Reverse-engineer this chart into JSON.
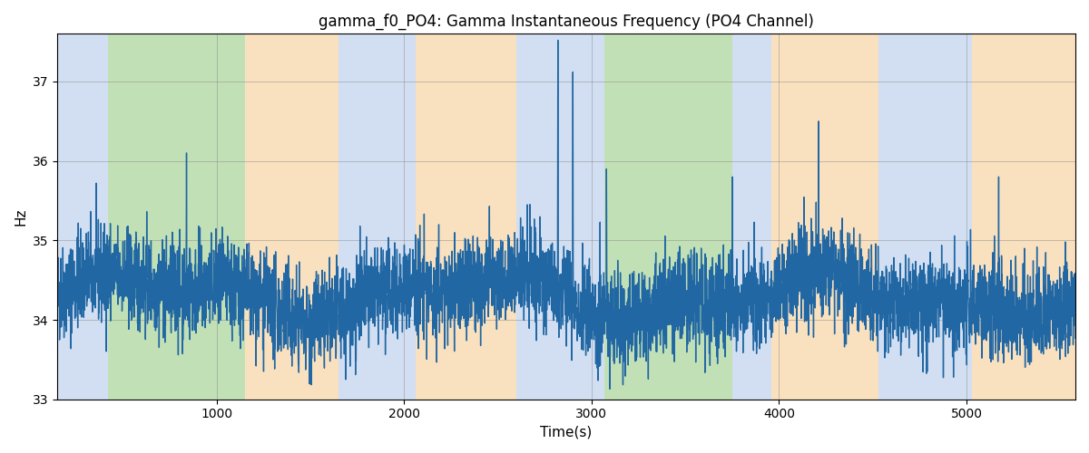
{
  "title": "gamma_f0_PO4: Gamma Instantaneous Frequency (PO4 Channel)",
  "xlabel": "Time(s)",
  "ylabel": "Hz",
  "ylim": [
    33,
    37.6
  ],
  "xlim": [
    150,
    5580
  ],
  "yticks": [
    33,
    34,
    35,
    36,
    37
  ],
  "xticks": [
    1000,
    2000,
    3000,
    4000,
    5000
  ],
  "line_color": "#2167a3",
  "line_width": 1.0,
  "bg_regions": [
    {
      "start": 150,
      "end": 420,
      "color": "#aec6e8",
      "alpha": 0.55
    },
    {
      "start": 420,
      "end": 1150,
      "color": "#90c87a",
      "alpha": 0.55
    },
    {
      "start": 1150,
      "end": 1650,
      "color": "#f5c88a",
      "alpha": 0.55
    },
    {
      "start": 1650,
      "end": 2060,
      "color": "#aec6e8",
      "alpha": 0.55
    },
    {
      "start": 2060,
      "end": 2600,
      "color": "#f5c88a",
      "alpha": 0.55
    },
    {
      "start": 2600,
      "end": 3070,
      "color": "#aec6e8",
      "alpha": 0.55
    },
    {
      "start": 3070,
      "end": 3750,
      "color": "#90c87a",
      "alpha": 0.55
    },
    {
      "start": 3750,
      "end": 3960,
      "color": "#aec6e8",
      "alpha": 0.55
    },
    {
      "start": 3960,
      "end": 4530,
      "color": "#f5c88a",
      "alpha": 0.55
    },
    {
      "start": 4530,
      "end": 5030,
      "color": "#aec6e8",
      "alpha": 0.55
    },
    {
      "start": 5030,
      "end": 5580,
      "color": "#f5c88a",
      "alpha": 0.55
    }
  ],
  "seed": 42,
  "n_points": 5430,
  "base_freq": 34.3,
  "noise_std": 0.3,
  "title_fontsize": 12,
  "label_fontsize": 11
}
